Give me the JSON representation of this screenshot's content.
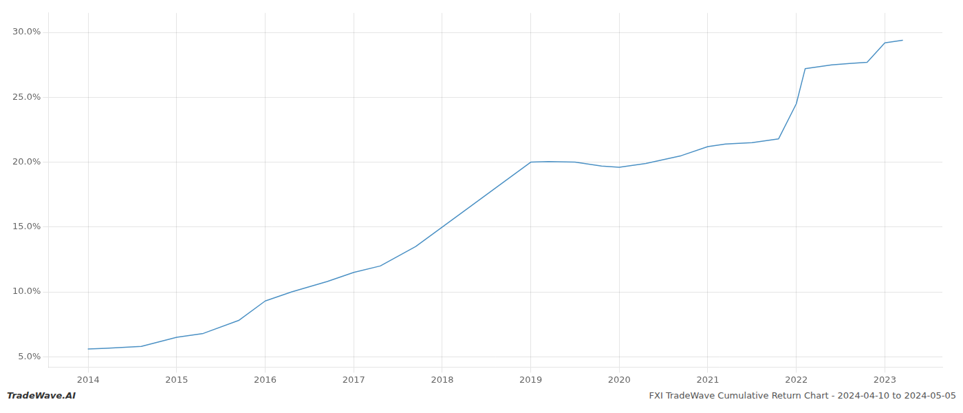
{
  "chart_data": {
    "type": "line",
    "x": [
      2014.0,
      2014.2,
      2014.6,
      2015.0,
      2015.3,
      2015.7,
      2016.0,
      2016.3,
      2016.7,
      2017.0,
      2017.3,
      2017.7,
      2018.0,
      2018.3,
      2018.7,
      2019.0,
      2019.2,
      2019.5,
      2019.8,
      2020.0,
      2020.3,
      2020.7,
      2021.0,
      2021.2,
      2021.5,
      2021.8,
      2022.0,
      2022.1,
      2022.4,
      2022.6,
      2022.8,
      2023.0,
      2023.2
    ],
    "values": [
      5.6,
      5.65,
      5.8,
      6.5,
      6.8,
      7.8,
      9.3,
      10.0,
      10.8,
      11.5,
      12.0,
      13.5,
      15.0,
      16.5,
      18.5,
      20.0,
      20.05,
      20.0,
      19.7,
      19.6,
      19.9,
      20.5,
      21.2,
      21.4,
      21.5,
      21.8,
      24.5,
      27.2,
      27.5,
      27.6,
      27.7,
      29.2,
      29.4
    ],
    "color": "#4a90c4",
    "xlim": [
      2013.55,
      2023.65
    ],
    "xticks": [
      2014,
      2015,
      2016,
      2017,
      2018,
      2019,
      2020,
      2021,
      2022,
      2023
    ],
    "ylim": [
      4.2,
      31.5
    ],
    "yticks": [
      {
        "value": 5.0,
        "label": "5.0%"
      },
      {
        "value": 10.0,
        "label": "10.0%"
      },
      {
        "value": 15.0,
        "label": "15.0%"
      },
      {
        "value": 20.0,
        "label": "20.0%"
      },
      {
        "value": 25.0,
        "label": "25.0%"
      },
      {
        "value": 30.0,
        "label": "30.0%"
      }
    ],
    "grid": true,
    "annotations": [
      "TradeWave.AI",
      "FXI TradeWave Cumulative Return Chart - 2024-04-10 to 2024-05-05"
    ]
  }
}
